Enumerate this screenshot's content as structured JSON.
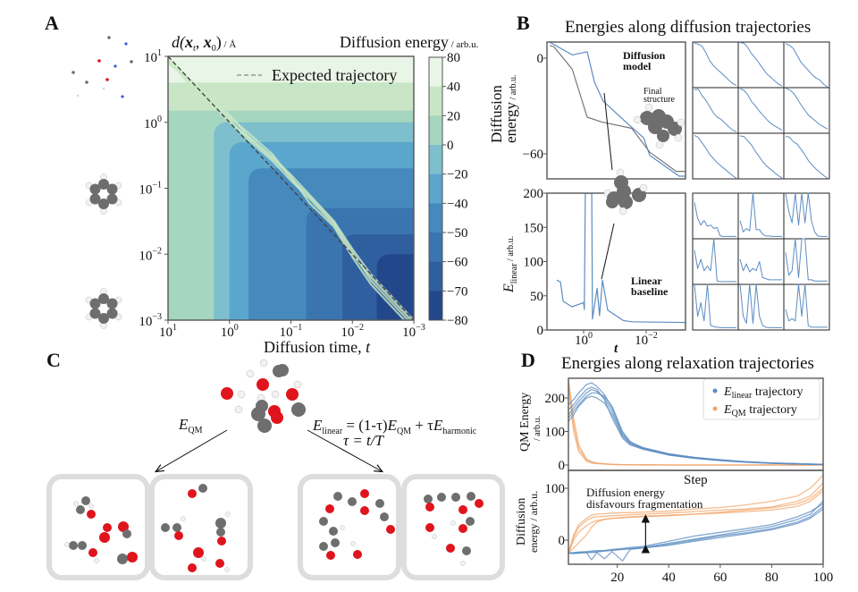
{
  "panel_labels": {
    "a": "A",
    "b": "B",
    "c": "C",
    "d": "D"
  },
  "colors": {
    "blue": "#5b8cc2",
    "orange": "#f2a56a",
    "gray_line": "#777777",
    "carbon": "#6e6e6e",
    "oxygen": "#e0141c",
    "hydrogen": "#f2f2f2",
    "frame": "#dddddd"
  },
  "panel_a": {
    "ylabel": {
      "d": "d(",
      "x1": "x",
      "s1": "t",
      "comma": ", ",
      "x2": "x",
      "s2": "0",
      "close": ")",
      "unit": " / Å"
    },
    "colorbar_label": {
      "main": "Diffusion energy",
      "unit": " / arb.u."
    },
    "legend": "Expected trajectory",
    "xlabel": {
      "main": "Diffusion time, ",
      "var": "t"
    },
    "tick_base": "10"
  },
  "panel_b": {
    "title": "Energies along diffusion trajectories",
    "top_annotation": {
      "line1": "Diffusion",
      "line2": "model"
    },
    "final_structure": {
      "line1": "Final",
      "line2": "structure"
    },
    "top_ylabel": {
      "line1": "Diffusion",
      "line2": "energy",
      "unit": " / arb.u."
    },
    "bottom_annotation": {
      "line1": "Linear",
      "line2": "baseline"
    },
    "bottom_ylabel": {
      "E": "E",
      "sub": "linear",
      "unit": " / arb.u."
    },
    "xlabel": "t",
    "tick_base": "10"
  },
  "panel_c": {
    "left_label": {
      "E": "E",
      "sub": "QM"
    },
    "equation": {
      "E1": "E",
      "sub1": "linear",
      "mid": " = (1-τ)",
      "E2": "E",
      "sub2": "QM",
      "plus": " + τ",
      "E3": "E",
      "sub3": "harmonic"
    },
    "tau": "τ = t/T"
  },
  "panel_d": {
    "title": "Energies along relaxation trajectories",
    "legend": [
      {
        "E": "E",
        "sub": "linear",
        "rest": " trajectory"
      },
      {
        "E": "E",
        "sub": "QM",
        "rest": " trajectory"
      }
    ],
    "top_ylabel": {
      "line1": "QM Energy",
      "line2": "/ arb.u."
    },
    "xlabel": "Step",
    "bottom_ylabel": {
      "line1": "Diffusion",
      "line2": "energy / arb.u."
    },
    "annotation": {
      "line1": "Diffusion energy",
      "line2": "disfavours fragmentation"
    }
  },
  "chart_data": [
    {
      "id": "A",
      "type": "heatmap",
      "xlabel": "Diffusion time, t",
      "ylabel": "d(x_t, x_0) / Å",
      "xscale": "log",
      "yscale": "log",
      "xlim": [
        10,
        0.001
      ],
      "ylim": [
        0.001,
        10
      ],
      "xticks": [
        "1",
        "0",
        "−1",
        "−2",
        "−3"
      ],
      "yticks": [
        "1",
        "0",
        "−1",
        "−2",
        "−3"
      ],
      "colorbar": {
        "label": "Diffusion energy / arb.u.",
        "ticks": [
          "80",
          "40",
          "20",
          "0",
          "−20",
          "−40",
          "−50",
          "−60",
          "−70",
          "−80"
        ],
        "band_colors": [
          "#e9f5e6",
          "#c8e6c6",
          "#a5d6c0",
          "#7dbfcc",
          "#5ba6cd",
          "#4589bd",
          "#3a75b0",
          "#2f5f9f",
          "#23478b"
        ]
      },
      "regions": [
        {
          "level": "20 to 40",
          "color": "#c8e6c6",
          "t_max": 1.8,
          "d_min": 1.5
        },
        {
          "level": "40 to 80",
          "color": "#e9f5e6",
          "t_max": 8,
          "d_min": 4
        },
        {
          "level": "−20 to 0",
          "color": "#7dbfcc",
          "t_max": 1.8,
          "d_max": 1.0
        },
        {
          "level": "−40 to −20",
          "color": "#5ba6cd",
          "t_max": 1.0,
          "d_max": 0.5
        },
        {
          "level": "−50 to −40",
          "color": "#4589bd",
          "t_max": 0.49,
          "d_max": 0.2
        },
        {
          "level": "−60 to −50",
          "color": "#3a75b0",
          "t_max": 0.056,
          "d_max": 0.05
        },
        {
          "level": "−70 to −60",
          "color": "#2f5f9f",
          "t_max": 0.0145,
          "d_max": 0.02
        },
        {
          "level": "−80 to −70",
          "color": "#23478b",
          "t_max": 0.004,
          "d_max": 0.01
        }
      ],
      "background_level": {
        "level": "0 to 20",
        "color": "#a5d6c0"
      },
      "expected_trajectory": {
        "name": "Expected trajectory",
        "t": [
          10,
          0.001
        ],
        "d": [
          10,
          0.001
        ]
      },
      "trajectories": {
        "t": [
          10,
          5,
          3,
          1,
          0.5,
          0.2,
          0.1,
          0.05,
          0.02,
          0.01,
          0.005,
          0.002,
          0.001
        ],
        "d": [
          [
            9,
            4.2,
            3.0,
            1.3,
            0.62,
            0.3,
            0.16,
            0.08,
            0.032,
            0.012,
            0.005,
            0.002,
            0.001
          ],
          [
            8,
            4.8,
            3.4,
            1.1,
            0.55,
            0.26,
            0.13,
            0.07,
            0.028,
            0.01,
            0.0045,
            0.0018,
            0.0009
          ],
          [
            9.5,
            5,
            2.6,
            1.2,
            0.7,
            0.33,
            0.14,
            0.075,
            0.03,
            0.011,
            0.004,
            0.0016,
            0.0008
          ],
          [
            8.5,
            4.5,
            2.8,
            1.0,
            0.6,
            0.28,
            0.15,
            0.06,
            0.026,
            0.009,
            0.0035,
            0.0014,
            0.0007
          ]
        ]
      }
    },
    {
      "id": "B-top",
      "type": "line",
      "xscale": "log",
      "xlim": [
        15,
        0.00056
      ],
      "ylim": [
        -76,
        10
      ],
      "yticks": [
        0,
        -60
      ],
      "series": [
        {
          "t": [
            12,
            2.3,
            0.77,
            0.45,
            0.235,
            0.045,
            0.012,
            0.0077,
            0.00088,
            0.00056
          ],
          "E": [
            10,
            2,
            4,
            -15,
            -27,
            -40,
            -50,
            -61,
            -74,
            -74
          ],
          "color": "blue"
        },
        {
          "t": [
            12,
            8.8,
            2.3,
            0.77,
            0.27,
            0.029,
            0.0077,
            0.0011,
            0.00056
          ],
          "E": [
            8,
            7,
            -7,
            -37,
            -40,
            -44,
            -59,
            -71,
            -71
          ],
          "color": "gray_line"
        }
      ]
    },
    {
      "id": "B-bottom",
      "type": "line",
      "xscale": "log",
      "xlim": [
        15,
        0.00056
      ],
      "ylim": [
        0,
        200
      ],
      "xticks": [
        "0",
        "−2"
      ],
      "yticks": [
        0,
        50,
        100,
        150,
        200
      ],
      "series": [
        {
          "t": [
            7.2,
            5.5,
            4.5,
            2.35,
            1.0,
            0.95,
            0.88,
            0.6,
            0.55,
            0.52,
            0.37,
            0.31,
            0.25,
            0.17,
            0.055,
            0.029,
            0.00056
          ],
          "E": [
            73,
            70,
            42,
            34,
            40,
            30,
            200,
            200,
            200,
            16,
            61,
            21,
            73,
            29,
            14,
            12,
            11
          ],
          "color": "blue"
        }
      ]
    },
    {
      "id": "B-top-grid",
      "type": "line",
      "ylim": [
        -76,
        10
      ],
      "series": [
        [
          8,
          6,
          2,
          -10,
          -25,
          -35,
          -42,
          -48,
          -55,
          -62,
          -68,
          -72
        ],
        [
          9,
          8,
          0,
          -12,
          -20,
          -30,
          -40,
          -50,
          -56,
          -63,
          -69,
          -73
        ],
        [
          7,
          4,
          -2,
          -15,
          -28,
          -36,
          -44,
          -52,
          -58,
          -62,
          -70,
          -75
        ],
        [
          6,
          7,
          -5,
          -14,
          -26,
          -38,
          -46,
          -50,
          -57,
          -64,
          -70,
          -73
        ],
        [
          8,
          5,
          -3,
          -16,
          -24,
          -34,
          -42,
          -50,
          -57,
          -62,
          -66,
          -70
        ],
        [
          9,
          6,
          0,
          -10,
          -22,
          -32,
          -42,
          -48,
          -54,
          -60,
          -64,
          -68
        ],
        [
          6,
          2,
          -8,
          -18,
          -30,
          -38,
          -46,
          -52,
          -58,
          -64,
          -70,
          -75
        ],
        [
          5,
          4,
          -4,
          -12,
          -24,
          -34,
          -44,
          -52,
          -58,
          -64,
          -70,
          -74
        ],
        [
          4,
          3,
          -6,
          -10,
          -20,
          -30,
          -42,
          -50,
          -58,
          -64,
          -70,
          -75
        ]
      ]
    },
    {
      "id": "B-bottom-grid",
      "type": "line",
      "ylim": [
        0,
        200
      ],
      "series": [
        [
          160,
          90,
          60,
          80,
          55,
          60,
          45,
          50,
          12,
          10,
          10,
          10,
          10,
          10
        ],
        [
          80,
          30,
          45,
          35,
          200,
          40,
          40,
          20,
          12,
          12,
          10,
          10,
          10,
          10
        ],
        [
          200,
          120,
          70,
          200,
          60,
          200,
          70,
          200,
          80,
          30,
          12,
          10,
          10,
          10
        ],
        [
          150,
          70,
          110,
          60,
          80,
          60,
          200,
          15,
          12,
          12,
          12,
          12,
          12,
          12
        ],
        [
          110,
          60,
          90,
          55,
          70,
          60,
          100,
          30,
          25,
          20,
          20,
          20,
          20,
          20
        ],
        [
          140,
          40,
          60,
          200,
          30,
          200,
          200,
          20,
          20,
          15,
          15,
          15,
          15,
          15
        ],
        [
          200,
          60,
          120,
          40,
          200,
          20,
          15,
          12,
          10,
          10,
          10,
          10,
          10,
          10
        ],
        [
          200,
          60,
          30,
          200,
          30,
          200,
          60,
          20,
          12,
          10,
          10,
          10,
          10,
          10
        ],
        [
          90,
          40,
          50,
          40,
          200,
          60,
          200,
          20,
          12,
          12,
          12,
          12,
          12,
          12
        ]
      ]
    },
    {
      "id": "D-top",
      "type": "line",
      "xlabel": "Step",
      "ylabel": "QM Energy / arb.u.",
      "xlim": [
        1,
        100
      ],
      "ylim": [
        -16,
        259
      ],
      "yticks": [
        0,
        100,
        200
      ],
      "x": [
        1,
        3,
        5,
        8,
        10,
        12,
        15,
        18,
        22,
        25,
        30,
        40,
        50,
        60,
        70,
        80,
        90,
        100
      ],
      "series": [
        {
          "name": "E_linear trajectory",
          "color": "blue",
          "curves": [
            [
              150,
              170,
              190,
              215,
              225,
              220,
              200,
              160,
              90,
              65,
              50,
              32,
              22,
              15,
              10,
              6,
              4,
              2
            ],
            [
              130,
              150,
              175,
              200,
              205,
              200,
              185,
              150,
              85,
              62,
              48,
              30,
              20,
              14,
              9,
              6,
              3,
              2
            ],
            [
              180,
              195,
              215,
              240,
              245,
              235,
              210,
              170,
              95,
              68,
              52,
              34,
              23,
              16,
              10,
              6,
              4,
              2
            ],
            [
              140,
              160,
              180,
              205,
              215,
              215,
              205,
              175,
              100,
              70,
              50,
              31,
              21,
              14,
              9,
              5,
              3,
              2
            ],
            [
              165,
              180,
              200,
              225,
              232,
              226,
              195,
              140,
              80,
              60,
              47,
              30,
              20,
              13,
              8,
              5,
              3,
              1
            ]
          ]
        },
        {
          "name": "E_QM trajectory",
          "color": "orange",
          "curves": [
            [
              250,
              120,
              50,
              15,
              8,
              5,
              3,
              2,
              1,
              1,
              1,
              0,
              0,
              0,
              0,
              0,
              0,
              0
            ],
            [
              240,
              100,
              40,
              12,
              6,
              4,
              3,
              2,
              1,
              1,
              0,
              0,
              0,
              0,
              0,
              0,
              0,
              0
            ],
            [
              255,
              140,
              60,
              18,
              10,
              6,
              4,
              2,
              1,
              1,
              1,
              0,
              0,
              0,
              0,
              0,
              0,
              0
            ]
          ]
        }
      ]
    },
    {
      "id": "D-bottom",
      "type": "line",
      "xlabel": "Step",
      "ylabel": "Diffusion energy / arb.u.",
      "xlim": [
        1,
        100
      ],
      "ylim": [
        -47,
        134
      ],
      "xticks": [
        20,
        40,
        60,
        80,
        100
      ],
      "yticks": [
        0,
        100
      ],
      "x": [
        1,
        3,
        5,
        8,
        10,
        12,
        15,
        18,
        22,
        25,
        30,
        40,
        50,
        60,
        70,
        80,
        90,
        95,
        100
      ],
      "series": [
        {
          "name": "E_linear trajectory",
          "color": "blue",
          "curves": [
            [
              -25,
              -25,
              -24,
              -24,
              -23,
              -22,
              -20,
              -19,
              -18,
              -16,
              -14,
              -6,
              2,
              10,
              18,
              26,
              40,
              50,
              75
            ],
            [
              -25,
              -26,
              -25,
              -24,
              -38,
              -24,
              -36,
              -22,
              -40,
              -18,
              -15,
              -8,
              0,
              8,
              14,
              22,
              35,
              45,
              65
            ],
            [
              -25,
              -24,
              -23,
              -22,
              -21,
              -20,
              -20,
              -18,
              -16,
              -14,
              -12,
              -2,
              8,
              15,
              22,
              30,
              45,
              55,
              70
            ],
            [
              -25,
              -25,
              -25,
              -24,
              -24,
              -23,
              -21,
              -20,
              -18,
              -17,
              -15,
              -10,
              -2,
              5,
              12,
              20,
              32,
              42,
              60
            ]
          ]
        },
        {
          "name": "E_QM trajectory",
          "color": "orange",
          "curves": [
            [
              -25,
              5,
              25,
              38,
              43,
              45,
              46,
              47,
              48,
              49,
              50,
              52,
              55,
              58,
              60,
              64,
              75,
              85,
              110
            ],
            [
              -25,
              0,
              15,
              28,
              34,
              38,
              40,
              42,
              43,
              44,
              45,
              47,
              50,
              52,
              55,
              58,
              65,
              75,
              95
            ],
            [
              -25,
              10,
              30,
              42,
              48,
              50,
              51,
              52,
              53,
              53,
              54,
              56,
              60,
              63,
              68,
              75,
              85,
              100,
              125
            ],
            [
              -25,
              -15,
              -5,
              10,
              25,
              35,
              40,
              42,
              44,
              45,
              46,
              48,
              50,
              54,
              58,
              62,
              70,
              80,
              100
            ]
          ]
        }
      ],
      "annotation_arrow": {
        "step": 31,
        "from": -17,
        "to": 45
      }
    }
  ]
}
